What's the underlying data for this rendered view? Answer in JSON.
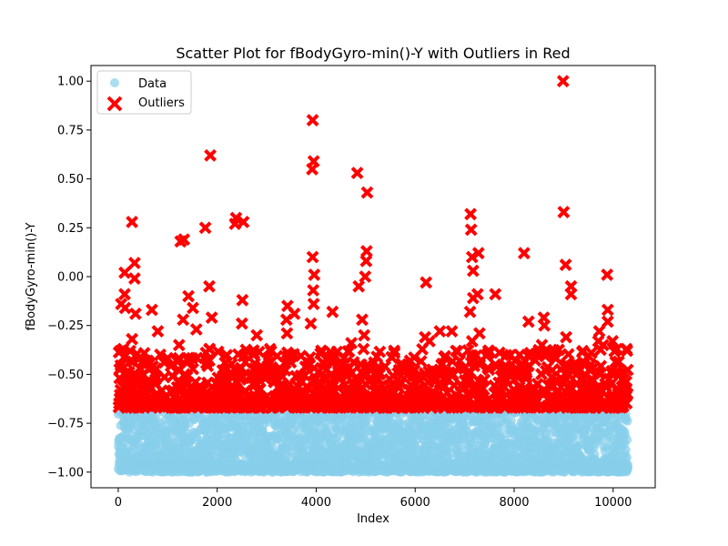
{
  "chart_data": {
    "type": "scatter",
    "title": "Scatter Plot for fBodyGyro-min()-Y with Outliers in Red",
    "xlabel": "Index",
    "ylabel": "fBodyGyro-min()-Y",
    "xlim": [
      -550,
      10850
    ],
    "ylim": [
      -1.08,
      1.08
    ],
    "x_ticks": [
      0,
      2000,
      4000,
      6000,
      8000,
      10000
    ],
    "y_ticks": [
      -1.0,
      -0.75,
      -0.5,
      -0.25,
      0.0,
      0.25,
      0.5,
      0.75,
      1.0
    ],
    "x_tick_labels": [
      "0",
      "2000",
      "4000",
      "6000",
      "8000",
      "10000"
    ],
    "y_tick_labels": [
      "−1.00",
      "−0.75",
      "−0.50",
      "−0.25",
      "0.00",
      "0.25",
      "0.50",
      "0.75",
      "1.00"
    ],
    "grid": false,
    "legend_position": "top-left",
    "colors": {
      "data": "#87ceeb",
      "outliers": "#ff0000"
    },
    "series": [
      {
        "name": "Data",
        "marker": "circle",
        "color": "#87ceeb",
        "x_range": [
          0,
          10299
        ],
        "y_band": [
          -1.0,
          -0.68
        ],
        "approx_count": 10299
      },
      {
        "name": "Outliers",
        "marker": "x",
        "color": "#ff0000",
        "points": [
          [
            8990,
            1.0
          ],
          [
            3930,
            0.8
          ],
          [
            3950,
            0.59
          ],
          [
            3920,
            0.55
          ],
          [
            1860,
            0.62
          ],
          [
            4830,
            0.53
          ],
          [
            5030,
            0.43
          ],
          [
            9000,
            0.33
          ],
          [
            7120,
            0.32
          ],
          [
            7130,
            0.24
          ],
          [
            2380,
            0.3
          ],
          [
            2530,
            0.28
          ],
          [
            2360,
            0.27
          ],
          [
            1760,
            0.25
          ],
          [
            280,
            0.28
          ],
          [
            1330,
            0.19
          ],
          [
            1260,
            0.18
          ],
          [
            8200,
            0.12
          ],
          [
            7280,
            0.12
          ],
          [
            5020,
            0.13
          ],
          [
            3930,
            0.1
          ],
          [
            7150,
            0.1
          ],
          [
            330,
            0.07
          ],
          [
            9040,
            0.06
          ],
          [
            5010,
            0.08
          ],
          [
            7170,
            0.03
          ],
          [
            3960,
            0.01
          ],
          [
            9880,
            0.01
          ],
          [
            130,
            0.02
          ],
          [
            4990,
            0.0
          ],
          [
            330,
            -0.01
          ],
          [
            6220,
            -0.03
          ],
          [
            4860,
            -0.05
          ],
          [
            1840,
            -0.05
          ],
          [
            9150,
            -0.05
          ],
          [
            3940,
            -0.07
          ],
          [
            7260,
            -0.09
          ],
          [
            7620,
            -0.09
          ],
          [
            9150,
            -0.09
          ],
          [
            130,
            -0.09
          ],
          [
            1420,
            -0.1
          ],
          [
            7170,
            -0.11
          ],
          [
            2510,
            -0.12
          ],
          [
            60,
            -0.14
          ],
          [
            140,
            -0.16
          ],
          [
            3420,
            -0.15
          ],
          [
            3950,
            -0.14
          ],
          [
            680,
            -0.17
          ],
          [
            1510,
            -0.16
          ],
          [
            7110,
            -0.18
          ],
          [
            9890,
            -0.17
          ],
          [
            4330,
            -0.18
          ],
          [
            350,
            -0.19
          ],
          [
            3560,
            -0.19
          ],
          [
            1310,
            -0.22
          ],
          [
            1890,
            -0.21
          ],
          [
            3400,
            -0.22
          ],
          [
            4930,
            -0.22
          ],
          [
            8600,
            -0.21
          ],
          [
            8290,
            -0.23
          ],
          [
            9890,
            -0.23
          ],
          [
            2500,
            -0.24
          ],
          [
            3890,
            -0.24
          ],
          [
            8610,
            -0.25
          ],
          [
            1580,
            -0.27
          ],
          [
            800,
            -0.28
          ],
          [
            3410,
            -0.29
          ],
          [
            6500,
            -0.28
          ],
          [
            6740,
            -0.28
          ],
          [
            7300,
            -0.29
          ],
          [
            9720,
            -0.28
          ],
          [
            2800,
            -0.3
          ],
          [
            4970,
            -0.3
          ],
          [
            6200,
            -0.31
          ],
          [
            9050,
            -0.31
          ],
          [
            280,
            -0.32
          ],
          [
            6290,
            -0.33
          ],
          [
            7150,
            -0.33
          ],
          [
            9700,
            -0.33
          ],
          [
            9990,
            -0.33
          ],
          [
            1230,
            -0.35
          ],
          [
            4710,
            -0.34
          ],
          [
            8560,
            -0.35
          ],
          [
            9800,
            -0.35
          ],
          [
            100,
            -0.37
          ],
          [
            1850,
            -0.37
          ],
          [
            7480,
            -0.38
          ],
          [
            10270,
            -0.37
          ],
          [
            2560,
            -0.4
          ],
          [
            5580,
            -0.39
          ],
          [
            8110,
            -0.4
          ],
          [
            8300,
            -0.41
          ],
          [
            600,
            -0.43
          ],
          [
            930,
            -0.44
          ],
          [
            3020,
            -0.42
          ],
          [
            6900,
            -0.43
          ],
          [
            4520,
            -0.45
          ],
          [
            5390,
            -0.46
          ],
          [
            7620,
            -0.45
          ],
          [
            9550,
            -0.45
          ],
          [
            2200,
            -0.47
          ],
          [
            3380,
            -0.48
          ],
          [
            5900,
            -0.47
          ],
          [
            8050,
            -0.47
          ],
          [
            9320,
            -0.48
          ],
          [
            10060,
            -0.49
          ],
          [
            200,
            -0.5
          ],
          [
            1100,
            -0.51
          ],
          [
            2700,
            -0.5
          ],
          [
            4150,
            -0.52
          ],
          [
            6050,
            -0.51
          ],
          [
            7880,
            -0.5
          ],
          [
            8950,
            -0.52
          ],
          [
            9600,
            -0.53
          ],
          [
            750,
            -0.55
          ],
          [
            1650,
            -0.56
          ],
          [
            3150,
            -0.54
          ],
          [
            4450,
            -0.57
          ],
          [
            5200,
            -0.55
          ],
          [
            6600,
            -0.56
          ],
          [
            7350,
            -0.54
          ],
          [
            8400,
            -0.57
          ],
          [
            9250,
            -0.55
          ],
          [
            10200,
            -0.56
          ],
          [
            50,
            -0.58
          ],
          [
            500,
            -0.6
          ],
          [
            1400,
            -0.59
          ],
          [
            2300,
            -0.61
          ],
          [
            3700,
            -0.6
          ],
          [
            4750,
            -0.58
          ],
          [
            5650,
            -0.61
          ],
          [
            6350,
            -0.59
          ],
          [
            7050,
            -0.6
          ],
          [
            7700,
            -0.58
          ],
          [
            8750,
            -0.61
          ],
          [
            9450,
            -0.59
          ],
          [
            10290,
            -0.6
          ],
          [
            300,
            -0.62
          ],
          [
            1950,
            -0.63
          ],
          [
            2900,
            -0.62
          ],
          [
            4050,
            -0.64
          ],
          [
            5450,
            -0.63
          ],
          [
            6150,
            -0.62
          ],
          [
            6850,
            -0.64
          ],
          [
            8250,
            -0.63
          ],
          [
            9100,
            -0.64
          ],
          [
            9900,
            -0.62
          ],
          [
            120,
            -0.65
          ],
          [
            1000,
            -0.65
          ],
          [
            2050,
            -0.66
          ],
          [
            3250,
            -0.65
          ],
          [
            4350,
            -0.66
          ],
          [
            5750,
            -0.65
          ],
          [
            6450,
            -0.66
          ],
          [
            7550,
            -0.65
          ],
          [
            7950,
            -0.66
          ],
          [
            8850,
            -0.65
          ],
          [
            9750,
            -0.66
          ],
          [
            10150,
            -0.65
          ]
        ]
      }
    ]
  }
}
